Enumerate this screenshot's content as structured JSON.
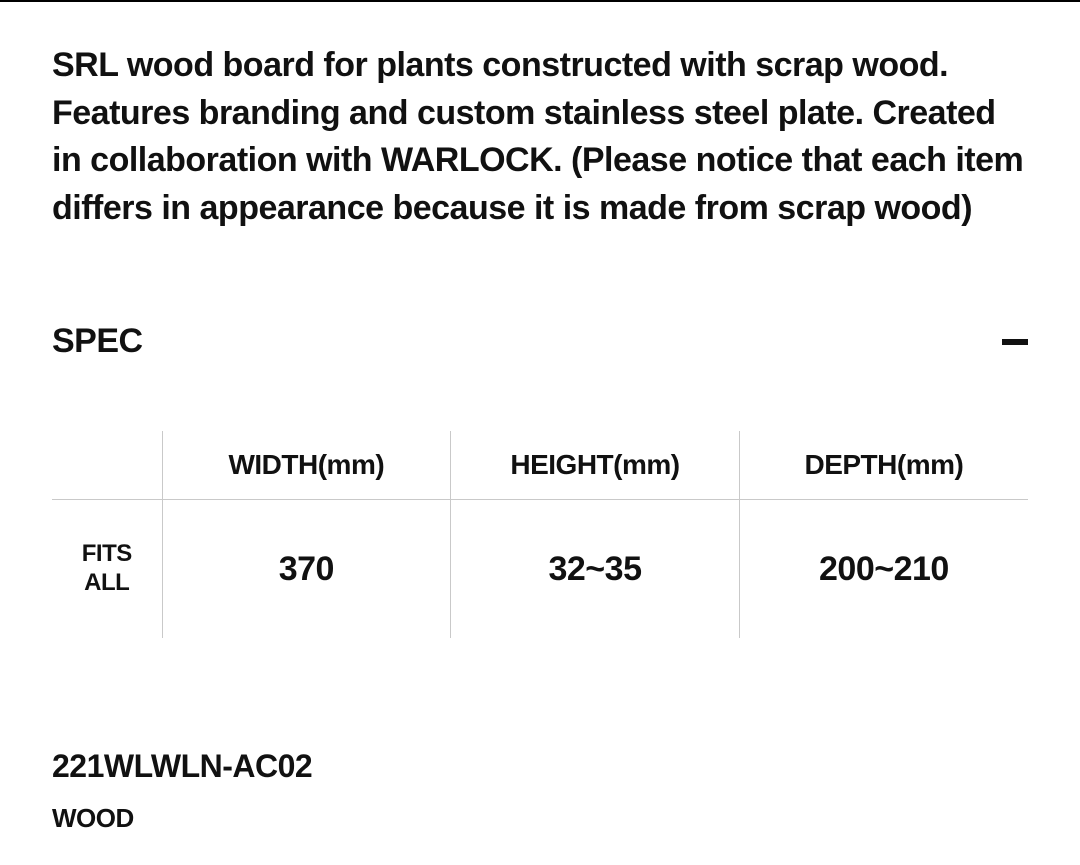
{
  "description": "SRL wood board for plants constructed with scrap wood. Features branding and custom stainless steel plate. Created in collaboration with WARLOCK. (Please notice that each item differs in appearance because it is made from scrap wood)",
  "spec": {
    "title": "SPEC",
    "columns": [
      "WIDTH(mm)",
      "HEIGHT(mm)",
      "DEPTH(mm)"
    ],
    "row_label_line1": "FITS",
    "row_label_line2": "ALL",
    "values": [
      "370",
      "32~35",
      "200~210"
    ]
  },
  "sku": "221WLWLN-AC02",
  "material": "WOOD"
}
